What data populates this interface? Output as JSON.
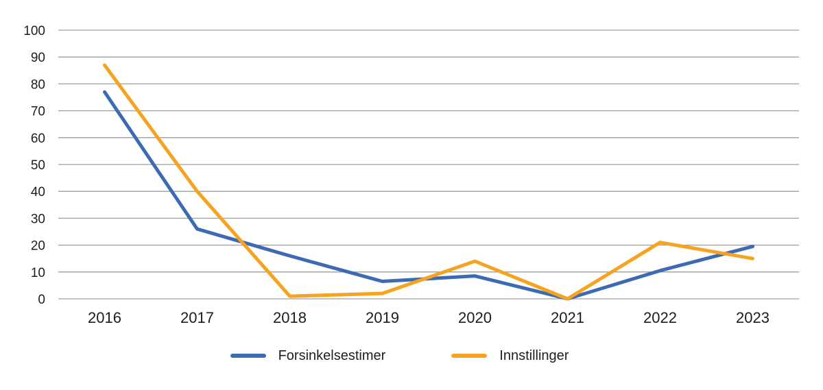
{
  "chart_data": {
    "type": "line",
    "title": "",
    "categories": [
      "2016",
      "2017",
      "2018",
      "2019",
      "2020",
      "2021",
      "2022",
      "2023"
    ],
    "series": [
      {
        "name": "Forsinkelsestimer",
        "color": "#3C6BB3",
        "values": [
          77,
          26,
          16,
          6.5,
          8.5,
          0,
          10.5,
          19.5
        ]
      },
      {
        "name": "Innstillinger",
        "color": "#F6A321",
        "values": [
          87,
          40,
          1,
          2,
          14,
          0,
          21,
          15
        ]
      }
    ],
    "xlabel": "",
    "ylabel": "",
    "ylim": [
      0,
      100
    ],
    "yticks": [
      0,
      10,
      20,
      30,
      40,
      50,
      60,
      70,
      80,
      90,
      100
    ],
    "grid": true,
    "legend_position": "bottom",
    "colors": {
      "gridline": "#9D9D9D",
      "text": "#1C1C1C",
      "background": "#FFFFFF"
    }
  }
}
